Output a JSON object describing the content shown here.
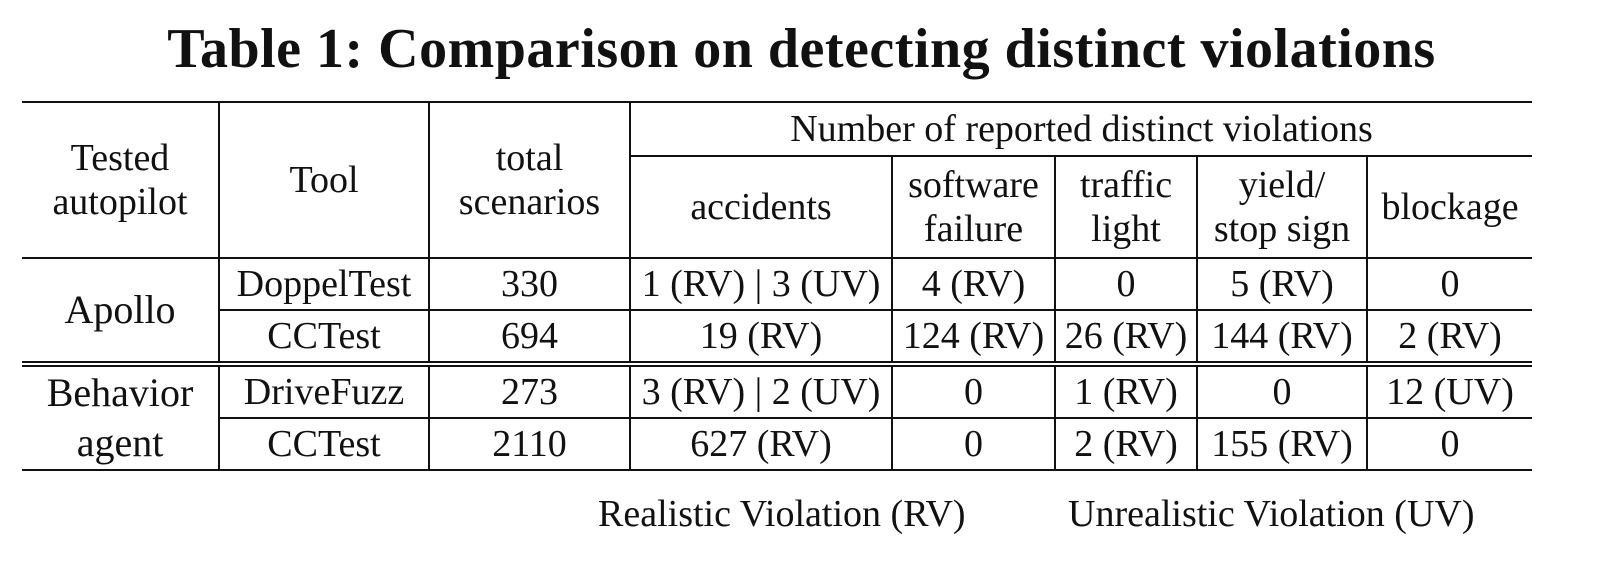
{
  "caption": "Table 1: Comparison on detecting distinct violations",
  "headers": {
    "autopilot_line1": "Tested",
    "autopilot_line2": "autopilot",
    "tool": "Tool",
    "scenarios_line1": "total",
    "scenarios_line2": "scenarios",
    "violations_group": "Number of reported distinct violations",
    "accidents": "accidents",
    "software_line1": "software",
    "software_line2": "failure",
    "traffic_line1": "traffic",
    "traffic_line2": "light",
    "yield_line1": "yield/",
    "yield_line2": "stop sign",
    "blockage": "blockage"
  },
  "groups": [
    {
      "autopilot_line1": "Apollo",
      "rows": [
        {
          "tool": "DoppelTest",
          "total": "330",
          "accidents": "1 (RV) | 3 (UV)",
          "software": "4 (RV)",
          "traffic": "0",
          "yield": "5 (RV)",
          "blockage": "0"
        },
        {
          "tool": "CCTest",
          "total": "694",
          "accidents": "19 (RV)",
          "software": "124 (RV)",
          "traffic": "26 (RV)",
          "yield": "144 (RV)",
          "blockage": "2 (RV)"
        }
      ]
    },
    {
      "autopilot_line1": "Behavior",
      "autopilot_line2": "agent",
      "rows": [
        {
          "tool": "DriveFuzz",
          "total": "273",
          "accidents": "3 (RV) | 2 (UV)",
          "software": "0",
          "traffic": "1 (RV)",
          "yield": "0",
          "blockage": "12 (UV)"
        },
        {
          "tool": "CCTest",
          "total": "2110",
          "accidents": "627 (RV)",
          "software": "0",
          "traffic": "2 (RV)",
          "yield": "155 (RV)",
          "blockage": "0"
        }
      ]
    }
  ],
  "legend": {
    "rv": "Realistic Violation (RV)",
    "uv": "Unrealistic Violation (UV)"
  }
}
